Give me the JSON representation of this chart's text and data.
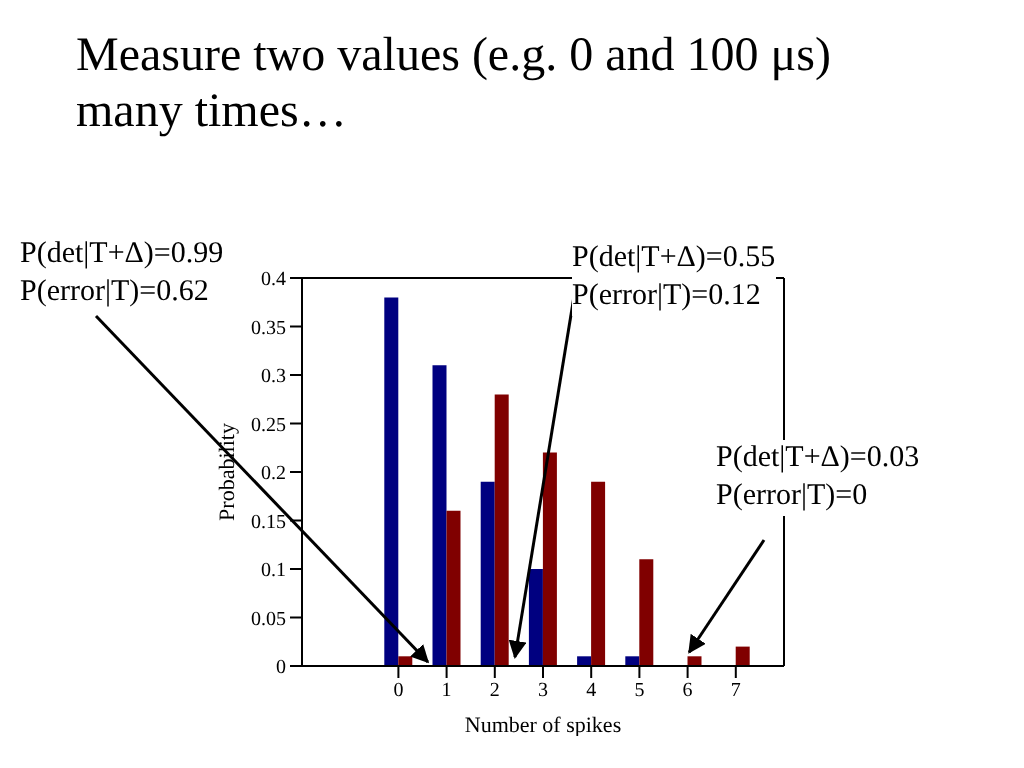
{
  "chart_data": {
    "type": "bar",
    "title": "Measure two values (e.g. 0 and 100 μs)\nmany times…",
    "xlabel": "Number of spikes",
    "ylabel": "Probability",
    "x": [
      0,
      1,
      2,
      3,
      4,
      5,
      6,
      7
    ],
    "series": [
      {
        "color": "#000080",
        "values": [
          0.38,
          0.31,
          0.19,
          0.1,
          0.01,
          0.01,
          0,
          0
        ]
      },
      {
        "color": "#800000",
        "values": [
          0.01,
          0.16,
          0.28,
          0.22,
          0.19,
          0.11,
          0.01,
          0.02
        ]
      }
    ],
    "xlim": [
      -2,
      8
    ],
    "xticks": [
      0,
      1,
      2,
      3,
      4,
      5,
      6,
      7
    ],
    "ylim": [
      0,
      0.4
    ],
    "yticks": [
      0,
      0.05,
      0.1,
      0.15,
      0.2,
      0.25,
      0.3,
      0.35,
      0.4
    ],
    "grid": false,
    "legend": false,
    "annotations": [
      {
        "text": "P(det|T+Δ)=0.99\nP(error|T)=0.62",
        "x": 0.6,
        "y": 0
      },
      {
        "text": "P(det|T+Δ)=0.55\nP(error|T)=0.12",
        "x": 2.4,
        "y": 0.005
      },
      {
        "text": "P(det|T+Δ)=0.03\nP(error|T)=0",
        "x": 6,
        "y": 0.01
      }
    ]
  }
}
